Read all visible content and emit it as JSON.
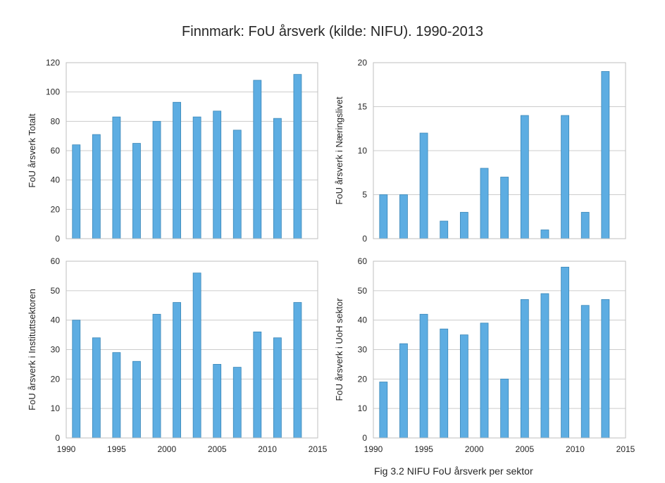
{
  "figure": {
    "title": "Finnmark: FoU årsverk (kilde: NIFU). 1990-2013",
    "caption": "Fig 3.2 NIFU FoU årsverk per sektor"
  },
  "colors": {
    "bar": "#5DADE2",
    "bar_edge": "#3A87B8",
    "grid": "#CCCCCC",
    "axis": "#BFBFBF"
  },
  "chart_data": [
    {
      "type": "bar",
      "x": [
        1991,
        1993,
        1995,
        1997,
        1999,
        2001,
        2003,
        2005,
        2007,
        2009,
        2011,
        2013
      ],
      "values": [
        64,
        71,
        83,
        65,
        80,
        93,
        83,
        87,
        74,
        108,
        82,
        112
      ],
      "ylabel": "FoU årsverk Totalt",
      "xlim": [
        1990,
        2015
      ],
      "ylim": [
        0,
        120
      ],
      "yticks": [
        0,
        20,
        40,
        60,
        80,
        100,
        120
      ],
      "xticks": [],
      "grid": true
    },
    {
      "type": "bar",
      "x": [
        1991,
        1993,
        1995,
        1997,
        1999,
        2001,
        2003,
        2005,
        2007,
        2009,
        2011,
        2013
      ],
      "values": [
        5,
        5,
        12,
        2,
        3,
        8,
        7,
        14,
        1,
        14,
        3,
        19
      ],
      "ylabel": "FoU årsverk i Næringslivet",
      "xlim": [
        1990,
        2015
      ],
      "ylim": [
        0,
        20
      ],
      "yticks": [
        0,
        5,
        10,
        15,
        20
      ],
      "xticks": [],
      "grid": true
    },
    {
      "type": "bar",
      "x": [
        1991,
        1993,
        1995,
        1997,
        1999,
        2001,
        2003,
        2005,
        2007,
        2009,
        2011,
        2013
      ],
      "values": [
        40,
        34,
        29,
        26,
        42,
        46,
        56,
        25,
        24,
        36,
        34,
        46
      ],
      "ylabel": "FoU årsverk i Instituttsektoren",
      "xlim": [
        1990,
        2015
      ],
      "ylim": [
        0,
        60
      ],
      "yticks": [
        0,
        10,
        20,
        30,
        40,
        50,
        60
      ],
      "xticks": [
        1990,
        1995,
        2000,
        2005,
        2010,
        2015
      ],
      "grid": true
    },
    {
      "type": "bar",
      "x": [
        1991,
        1993,
        1995,
        1997,
        1999,
        2001,
        2003,
        2005,
        2007,
        2009,
        2011,
        2013
      ],
      "values": [
        19,
        32,
        42,
        37,
        35,
        39,
        20,
        47,
        49,
        58,
        45,
        47
      ],
      "ylabel": "FoU årsverk i UoH sektor",
      "xlim": [
        1990,
        2015
      ],
      "ylim": [
        0,
        60
      ],
      "yticks": [
        0,
        10,
        20,
        30,
        40,
        50,
        60
      ],
      "xticks": [
        1990,
        1995,
        2000,
        2005,
        2010,
        2015
      ],
      "grid": true
    }
  ]
}
